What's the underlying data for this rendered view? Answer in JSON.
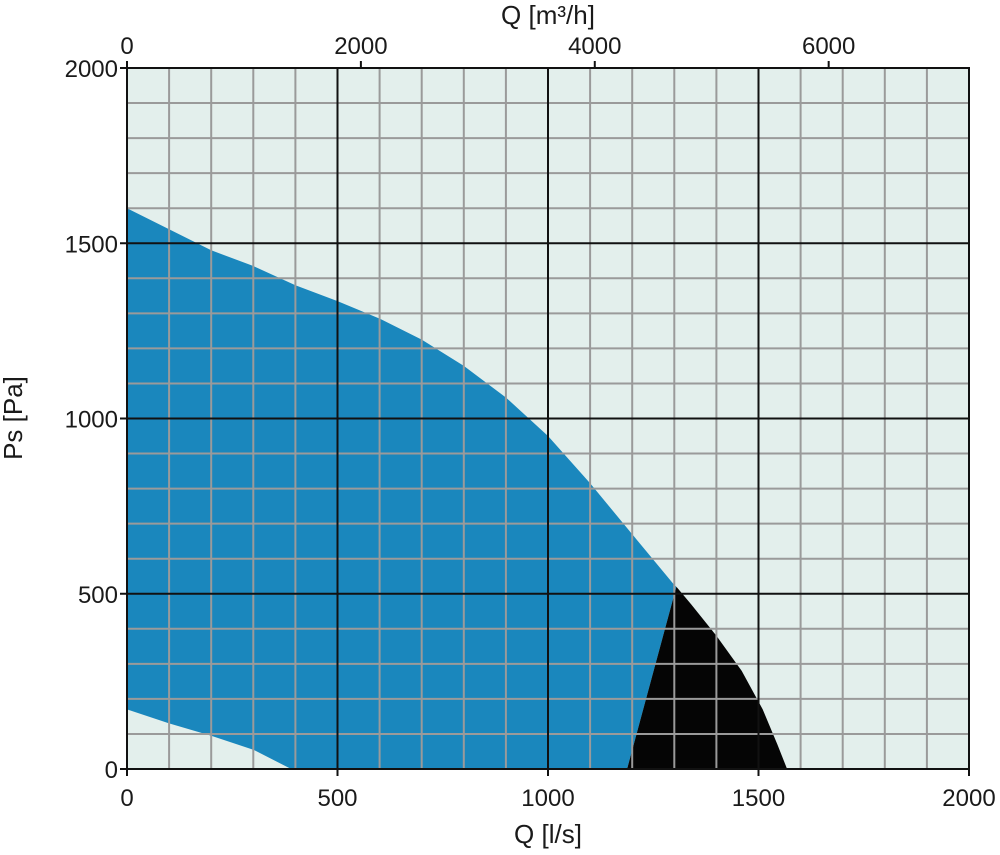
{
  "chart_data": {
    "type": "area",
    "title": "",
    "xlabel": "Q [l/s]",
    "ylabel": "Ps [Pa]",
    "x2label": "Q [m³/h]",
    "xlim": [
      0,
      2000
    ],
    "ylim": [
      0,
      2000
    ],
    "x2lim": [
      0,
      7200
    ],
    "xticks": [
      0,
      500,
      1000,
      1500,
      2000
    ],
    "yticks": [
      0,
      500,
      1000,
      1500,
      2000
    ],
    "x2ticks": [
      0,
      2000,
      4000,
      6000
    ],
    "grid": true,
    "minor_step_x": 100,
    "minor_step_y": 100,
    "colors": {
      "plot_background": "#e3efec",
      "operating_area": "#1a87bd",
      "restricted_area": "#050505",
      "minor_grid": "#9a9a9a",
      "major_grid": "#111111"
    },
    "series": [
      {
        "fill": "operating_area",
        "boundary": [
          {
            "x": 0,
            "y": 1600
          },
          {
            "x": 100,
            "y": 1540
          },
          {
            "x": 200,
            "y": 1480
          },
          {
            "x": 300,
            "y": 1435
          },
          {
            "x": 400,
            "y": 1380
          },
          {
            "x": 500,
            "y": 1335
          },
          {
            "x": 600,
            "y": 1285
          },
          {
            "x": 700,
            "y": 1225
          },
          {
            "x": 800,
            "y": 1150
          },
          {
            "x": 900,
            "y": 1060
          },
          {
            "x": 1000,
            "y": 950
          },
          {
            "x": 1100,
            "y": 815
          },
          {
            "x": 1200,
            "y": 670
          },
          {
            "x": 1300,
            "y": 525
          },
          {
            "x": 1305,
            "y": 520
          },
          {
            "x": 1188,
            "y": 0
          },
          {
            "x": 390,
            "y": 0
          },
          {
            "x": 300,
            "y": 55
          },
          {
            "x": 200,
            "y": 95
          },
          {
            "x": 100,
            "y": 130
          },
          {
            "x": 0,
            "y": 170
          }
        ]
      },
      {
        "fill": "restricted_area",
        "boundary": [
          {
            "x": 1305,
            "y": 520
          },
          {
            "x": 1340,
            "y": 470
          },
          {
            "x": 1400,
            "y": 380
          },
          {
            "x": 1460,
            "y": 280
          },
          {
            "x": 1510,
            "y": 170
          },
          {
            "x": 1545,
            "y": 70
          },
          {
            "x": 1568,
            "y": 0
          },
          {
            "x": 1188,
            "y": 0
          }
        ]
      }
    ]
  }
}
